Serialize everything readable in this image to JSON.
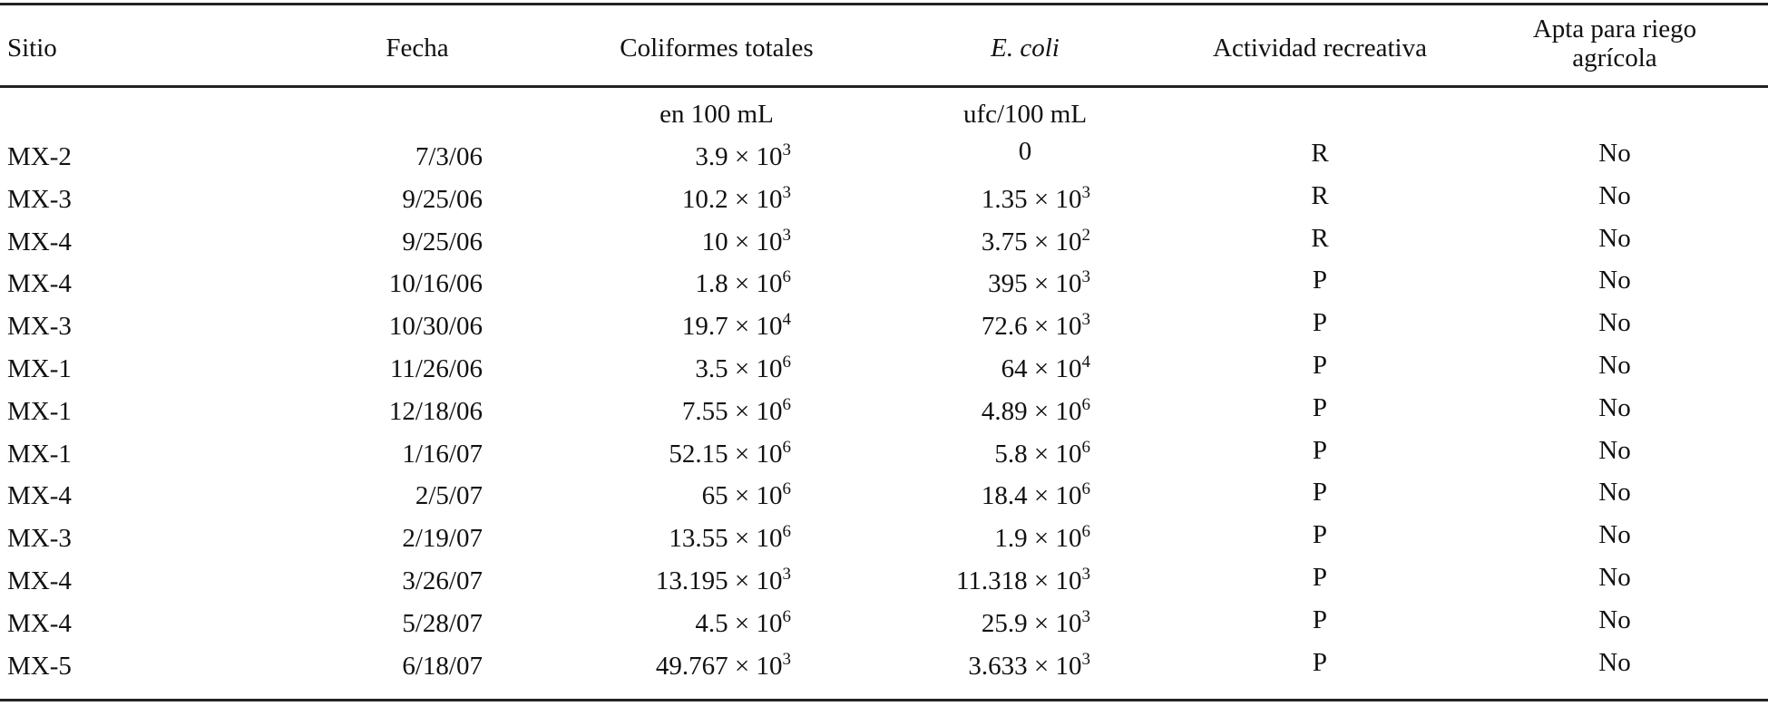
{
  "columns": {
    "sitio": "Sitio",
    "fecha": "Fecha",
    "coliformes": "Coliformes totales",
    "ecoli": "E. coli",
    "actividad": "Actividad recreativa",
    "riego_line1": "Apta para riego",
    "riego_line2": "agrícola"
  },
  "units": {
    "coliformes": "en 100 mL",
    "ecoli": "ufc/100 mL"
  },
  "times_sign": "×",
  "rows": [
    {
      "sitio": "MX-2",
      "fecha": "7/3/06",
      "coli_mant": "3.9",
      "coli_exp": "3",
      "ecoli_mant": "0",
      "ecoli_exp": "",
      "actividad": "R",
      "riego": "No"
    },
    {
      "sitio": "MX-3",
      "fecha": "9/25/06",
      "coli_mant": "10.2",
      "coli_exp": "3",
      "ecoli_mant": "1.35",
      "ecoli_exp": "3",
      "actividad": "R",
      "riego": "No"
    },
    {
      "sitio": "MX-4",
      "fecha": "9/25/06",
      "coli_mant": "10",
      "coli_exp": "3",
      "ecoli_mant": "3.75",
      "ecoli_exp": "2",
      "actividad": "R",
      "riego": "No"
    },
    {
      "sitio": "MX-4",
      "fecha": "10/16/06",
      "coli_mant": "1.8",
      "coli_exp": "6",
      "ecoli_mant": "395",
      "ecoli_exp": "3",
      "actividad": "P",
      "riego": "No"
    },
    {
      "sitio": "MX-3",
      "fecha": "10/30/06",
      "coli_mant": "19.7",
      "coli_exp": "4",
      "ecoli_mant": "72.6",
      "ecoli_exp": "3",
      "actividad": "P",
      "riego": "No"
    },
    {
      "sitio": "MX-1",
      "fecha": "11/26/06",
      "coli_mant": "3.5",
      "coli_exp": "6",
      "ecoli_mant": "64",
      "ecoli_exp": "4",
      "actividad": "P",
      "riego": "No"
    },
    {
      "sitio": "MX-1",
      "fecha": "12/18/06",
      "coli_mant": "7.55",
      "coli_exp": "6",
      "ecoli_mant": "4.89",
      "ecoli_exp": "6",
      "actividad": "P",
      "riego": "No"
    },
    {
      "sitio": "MX-1",
      "fecha": "1/16/07",
      "coli_mant": "52.15",
      "coli_exp": "6",
      "ecoli_mant": "5.8",
      "ecoli_exp": "6",
      "actividad": "P",
      "riego": "No"
    },
    {
      "sitio": "MX-4",
      "fecha": "2/5/07",
      "coli_mant": "65",
      "coli_exp": "6",
      "ecoli_mant": "18.4",
      "ecoli_exp": "6",
      "actividad": "P",
      "riego": "No"
    },
    {
      "sitio": "MX-3",
      "fecha": "2/19/07",
      "coli_mant": "13.55",
      "coli_exp": "6",
      "ecoli_mant": "1.9",
      "ecoli_exp": "6",
      "actividad": "P",
      "riego": "No"
    },
    {
      "sitio": "MX-4",
      "fecha": "3/26/07",
      "coli_mant": "13.195",
      "coli_exp": "3",
      "ecoli_mant": "11.318",
      "ecoli_exp": "3",
      "actividad": "P",
      "riego": "No"
    },
    {
      "sitio": "MX-4",
      "fecha": "5/28/07",
      "coli_mant": "4.5",
      "coli_exp": "6",
      "ecoli_mant": "25.9",
      "ecoli_exp": "3",
      "actividad": "P",
      "riego": "No"
    },
    {
      "sitio": "MX-5",
      "fecha": "6/18/07",
      "coli_mant": "49.767",
      "coli_exp": "3",
      "ecoli_mant": "3.633",
      "ecoli_exp": "3",
      "actividad": "P",
      "riego": "No"
    }
  ]
}
